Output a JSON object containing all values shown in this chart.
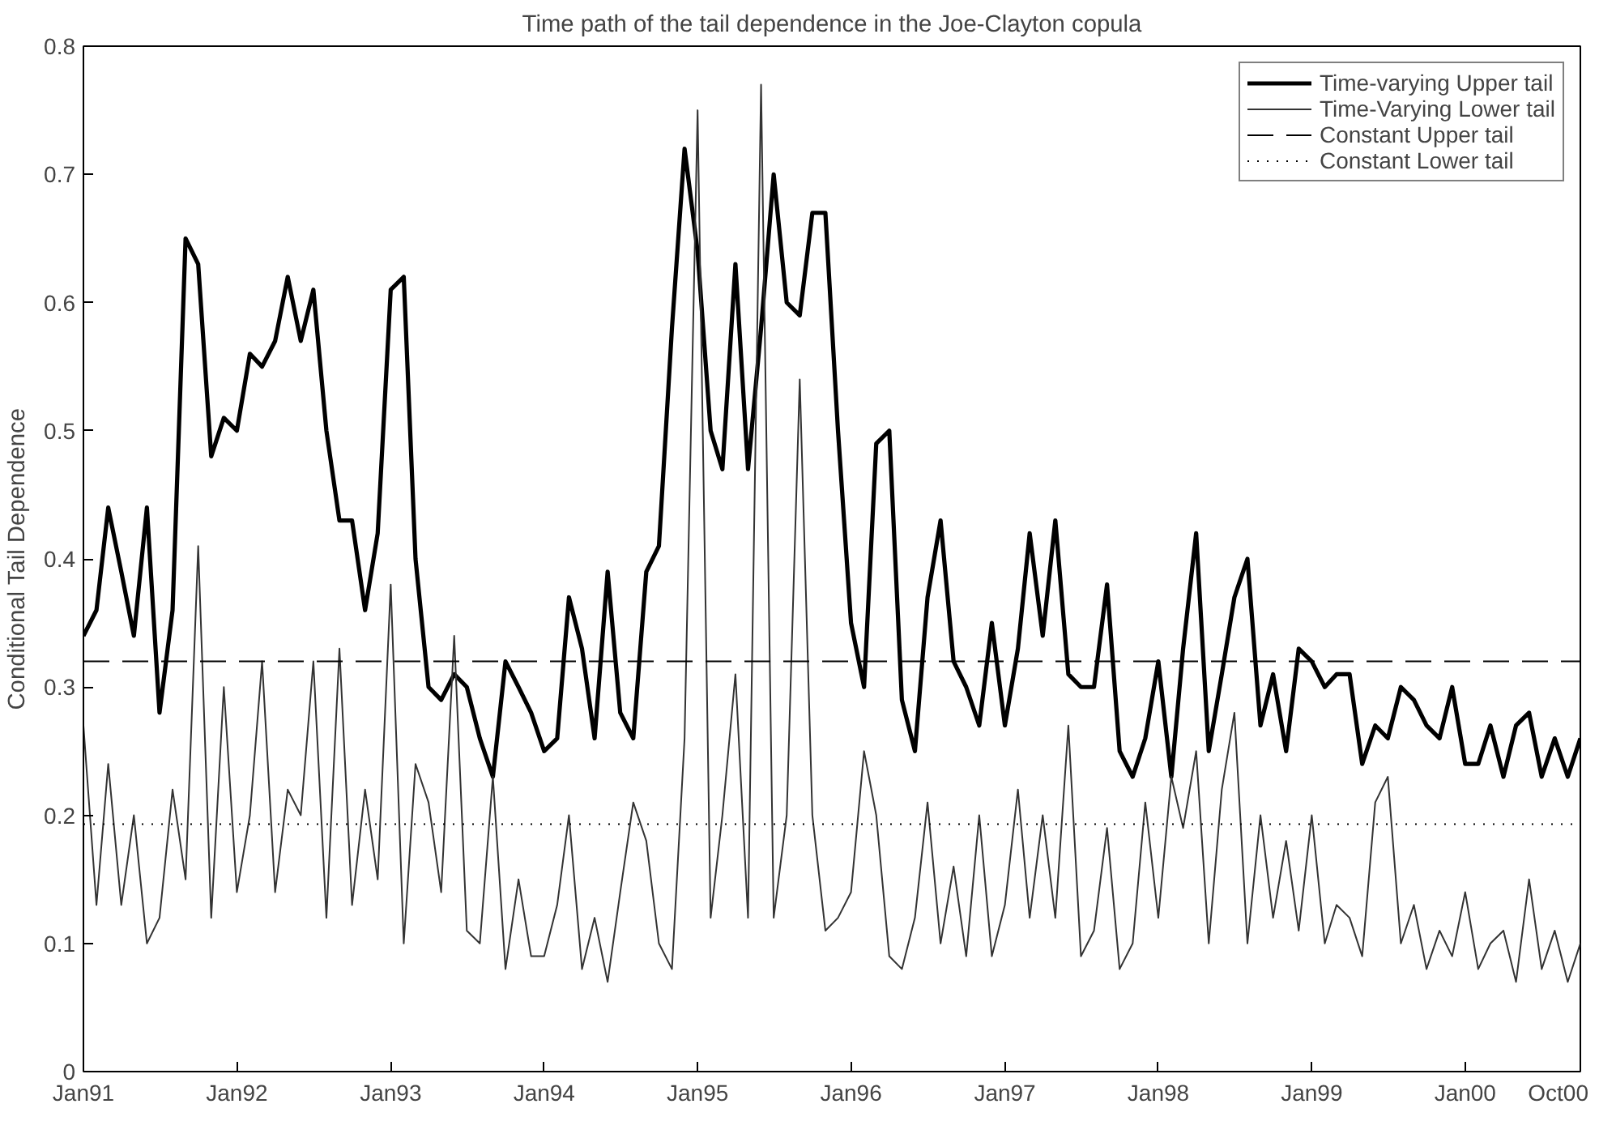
{
  "chart_data": {
    "type": "line",
    "title": "Time path of the tail dependence in the Joe-Clayton copula",
    "ylabel": "Conditional Tail Dependence",
    "x": [
      "1991-01",
      "1991-02",
      "1991-03",
      "1991-04",
      "1991-05",
      "1991-06",
      "1991-07",
      "1991-08",
      "1991-09",
      "1991-10",
      "1991-11",
      "1991-12",
      "1992-01",
      "1992-02",
      "1992-03",
      "1992-04",
      "1992-05",
      "1992-06",
      "1992-07",
      "1992-08",
      "1992-09",
      "1992-10",
      "1992-11",
      "1992-12",
      "1993-01",
      "1993-02",
      "1993-03",
      "1993-04",
      "1993-05",
      "1993-06",
      "1993-07",
      "1993-08",
      "1993-09",
      "1993-10",
      "1993-11",
      "1993-12",
      "1994-01",
      "1994-02",
      "1994-03",
      "1994-04",
      "1994-05",
      "1994-06",
      "1994-07",
      "1994-08",
      "1994-09",
      "1994-10",
      "1994-11",
      "1994-12",
      "1995-01",
      "1995-02",
      "1995-03",
      "1995-04",
      "1995-05",
      "1995-06",
      "1995-07",
      "1995-08",
      "1995-09",
      "1995-10",
      "1995-11",
      "1995-12",
      "1996-01",
      "1996-02",
      "1996-03",
      "1996-04",
      "1996-05",
      "1996-06",
      "1996-07",
      "1996-08",
      "1996-09",
      "1996-10",
      "1996-11",
      "1996-12",
      "1997-01",
      "1997-02",
      "1997-03",
      "1997-04",
      "1997-05",
      "1997-06",
      "1997-07",
      "1997-08",
      "1997-09",
      "1997-10",
      "1997-11",
      "1997-12",
      "1998-01",
      "1998-02",
      "1998-03",
      "1998-04",
      "1998-05",
      "1998-06",
      "1998-07",
      "1998-08",
      "1998-09",
      "1998-10",
      "1998-11",
      "1998-12",
      "1999-01",
      "1999-02",
      "1999-03",
      "1999-04",
      "1999-05",
      "1999-06",
      "1999-07",
      "1999-08",
      "1999-09",
      "1999-10",
      "1999-11",
      "1999-12",
      "2000-01",
      "2000-02",
      "2000-03",
      "2000-04",
      "2000-05",
      "2000-06",
      "2000-07",
      "2000-08",
      "2000-09",
      "2000-10"
    ],
    "series": [
      {
        "name": "Time-varying Upper tail",
        "color": "#000000",
        "line_style": "solid",
        "values": [
          0.34,
          0.36,
          0.44,
          0.39,
          0.34,
          0.44,
          0.28,
          0.36,
          0.65,
          0.63,
          0.48,
          0.51,
          0.5,
          0.56,
          0.55,
          0.57,
          0.62,
          0.57,
          0.61,
          0.5,
          0.43,
          0.43,
          0.36,
          0.42,
          0.61,
          0.62,
          0.4,
          0.3,
          0.29,
          0.31,
          0.3,
          0.26,
          0.23,
          0.32,
          0.3,
          0.28,
          0.25,
          0.26,
          0.37,
          0.33,
          0.26,
          0.39,
          0.28,
          0.26,
          0.39,
          0.41,
          0.58,
          0.72,
          0.64,
          0.5,
          0.47,
          0.63,
          0.47,
          0.58,
          0.7,
          0.6,
          0.59,
          0.67,
          0.67,
          0.5,
          0.35,
          0.3,
          0.49,
          0.5,
          0.29,
          0.25,
          0.37,
          0.43,
          0.32,
          0.3,
          0.27,
          0.35,
          0.27,
          0.33,
          0.42,
          0.34,
          0.43,
          0.31,
          0.3,
          0.3,
          0.38,
          0.25,
          0.23,
          0.26,
          0.32,
          0.23,
          0.33,
          0.42,
          0.25,
          0.31,
          0.37,
          0.4,
          0.27,
          0.31,
          0.25,
          0.33,
          0.32,
          0.3,
          0.31,
          0.31,
          0.24,
          0.27,
          0.26,
          0.3,
          0.29,
          0.27,
          0.26,
          0.3,
          0.24,
          0.24,
          0.27,
          0.23,
          0.27,
          0.28,
          0.23,
          0.26,
          0.23,
          0.26
        ]
      },
      {
        "name": "Time-Varying Lower tail",
        "color": "#333333",
        "line_style": "solid",
        "values": [
          0.27,
          0.13,
          0.24,
          0.13,
          0.2,
          0.1,
          0.12,
          0.22,
          0.15,
          0.41,
          0.12,
          0.3,
          0.14,
          0.2,
          0.32,
          0.14,
          0.22,
          0.2,
          0.32,
          0.12,
          0.33,
          0.13,
          0.22,
          0.15,
          0.38,
          0.1,
          0.24,
          0.21,
          0.14,
          0.34,
          0.11,
          0.1,
          0.23,
          0.08,
          0.15,
          0.09,
          0.09,
          0.13,
          0.2,
          0.08,
          0.12,
          0.07,
          0.14,
          0.21,
          0.18,
          0.1,
          0.08,
          0.26,
          0.75,
          0.12,
          0.2,
          0.31,
          0.12,
          0.77,
          0.12,
          0.2,
          0.54,
          0.2,
          0.11,
          0.12,
          0.14,
          0.25,
          0.2,
          0.09,
          0.08,
          0.12,
          0.21,
          0.1,
          0.16,
          0.09,
          0.2,
          0.09,
          0.13,
          0.22,
          0.12,
          0.2,
          0.12,
          0.27,
          0.09,
          0.11,
          0.19,
          0.08,
          0.1,
          0.21,
          0.12,
          0.23,
          0.19,
          0.25,
          0.1,
          0.22,
          0.28,
          0.1,
          0.2,
          0.12,
          0.18,
          0.11,
          0.2,
          0.1,
          0.13,
          0.12,
          0.09,
          0.21,
          0.23,
          0.1,
          0.13,
          0.08,
          0.11,
          0.09,
          0.14,
          0.08,
          0.1,
          0.11,
          0.07,
          0.15,
          0.08,
          0.11,
          0.07,
          0.1
        ]
      },
      {
        "name": "Constant Upper tail",
        "color": "#000000",
        "line_style": "dashed",
        "x": [
          "1991-01",
          "2000-10"
        ],
        "values": [
          0.32,
          0.32
        ]
      },
      {
        "name": "Constant Lower tail",
        "color": "#000000",
        "line_style": "dotted",
        "x": [
          "1991-01",
          "2000-10"
        ],
        "values": [
          0.193,
          0.193
        ]
      }
    ],
    "xlim": [
      "1991-01",
      "2000-10"
    ],
    "xticks": [
      {
        "value": "1991-01",
        "label": "Jan91"
      },
      {
        "value": "1992-01",
        "label": "Jan92"
      },
      {
        "value": "1993-01",
        "label": "Jan93"
      },
      {
        "value": "1994-01",
        "label": "Jan94"
      },
      {
        "value": "1995-01",
        "label": "Jan95"
      },
      {
        "value": "1996-01",
        "label": "Jan96"
      },
      {
        "value": "1997-01",
        "label": "Jan97"
      },
      {
        "value": "1998-01",
        "label": "Jan98"
      },
      {
        "value": "1999-01",
        "label": "Jan99"
      },
      {
        "value": "2000-01",
        "label": "Jan00"
      },
      {
        "value": "2000-10",
        "label": "Oct00"
      }
    ],
    "ylim": [
      0,
      0.8
    ],
    "yticks": [
      0,
      0.1,
      0.2,
      0.3,
      0.4,
      0.5,
      0.6,
      0.7,
      0.8
    ],
    "legend": "top right",
    "grid": false
  }
}
